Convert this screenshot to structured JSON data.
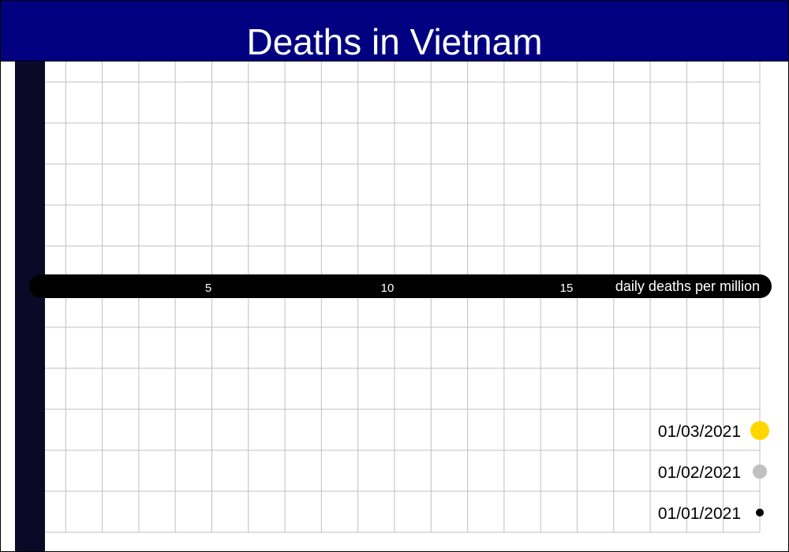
{
  "chart_data": {
    "type": "scatter",
    "title": "Deaths in Vietnam",
    "xlabel": "daily deaths per million",
    "x_ticks": [
      5,
      10,
      15
    ],
    "xlim": [
      0,
      19.5
    ],
    "grid": true,
    "legend_placement": "bottom-right",
    "series": [
      {
        "name": "01/03/2021",
        "color": "#ffd700",
        "values": []
      },
      {
        "name": "01/02/2021",
        "color": "#c0c0c0",
        "values": []
      },
      {
        "name": "01/01/2021",
        "color": "#000000",
        "values": []
      }
    ]
  },
  "colors": {
    "title_bar": "#000080",
    "left_band": "#0a0a28",
    "axis_band": "#000000",
    "grid": "#c0c0c0"
  }
}
